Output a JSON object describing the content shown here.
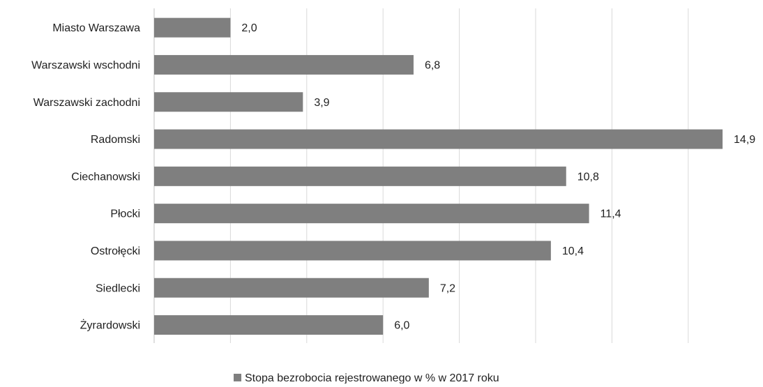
{
  "chart_data": {
    "type": "bar",
    "orientation": "horizontal",
    "categories": [
      "Miasto Warszawa",
      "Warszawski wschodni",
      "Warszawski zachodni",
      "Radomski",
      "Ciechanowski",
      "Płocki",
      "Ostrołęcki",
      "Siedlecki",
      "Żyrardowski"
    ],
    "series": [
      {
        "name": "Stopa bezrobocia rejestrowanego w % w 2017 roku",
        "values": [
          2.0,
          6.8,
          3.9,
          14.9,
          10.8,
          11.4,
          10.4,
          7.2,
          6.0
        ],
        "data_labels": [
          "2,0",
          "6,8",
          "3,9",
          "14,9",
          "10,8",
          "11,4",
          "10,4",
          "7,2",
          "6,0"
        ],
        "color": "#7f7f7f"
      }
    ],
    "xlim": [
      0,
      14
    ],
    "grid": true,
    "x_tick_labels_visible": false,
    "legend_position": "bottom",
    "gridline_color": "#d9d9d9",
    "axis_color": "#bfbfbf",
    "label_color": "#1f1f1f"
  }
}
